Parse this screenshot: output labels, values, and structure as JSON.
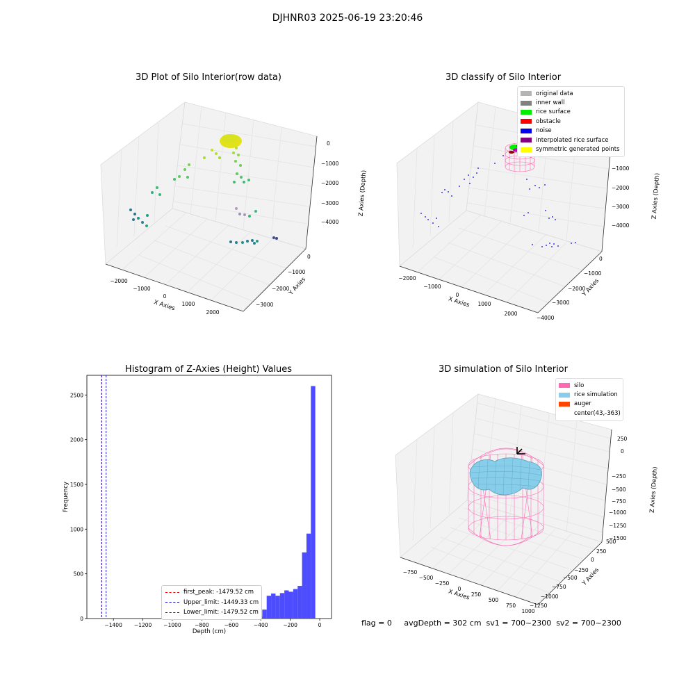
{
  "figure": {
    "suptitle": "DJHNR03 2025-06-19 23:20:46"
  },
  "colors": {
    "hist_bar": "#4d4dff",
    "first_peak_line": "#ff0000",
    "limit_lines": "#0000cc",
    "silo_wire": "#ff69b4",
    "rice_sim": "#87ceeb",
    "auger": "#ff4500"
  },
  "panel_raw": {
    "title": "3D Plot of Silo Interior(row data)",
    "xlabel": "X Axies",
    "ylabel": "Y Axies",
    "zlabel": "Z Axies (Depth)",
    "x_ticks": [
      "−2000",
      "−1000",
      "0",
      "1000",
      "2000"
    ],
    "y_ticks": [
      "0",
      "−1000",
      "−2000",
      "−3000"
    ],
    "z_ticks": [
      "0",
      "−1000",
      "−2000",
      "−3000",
      "−4000"
    ]
  },
  "panel_classify": {
    "title": "3D classify of Silo Interior",
    "xlabel": "X Axies",
    "ylabel": "Y Axies",
    "zlabel": "Z Axies (Depth)",
    "x_ticks": [
      "−2000",
      "−1000",
      "0",
      "1000",
      "2000"
    ],
    "y_ticks": [
      "0",
      "−1000",
      "−2000",
      "−3000",
      "−4000"
    ],
    "z_ticks": [
      "−1000",
      "−2000",
      "−3000",
      "−4000"
    ],
    "legend": [
      {
        "label": "original data",
        "color": "#b4b4b4"
      },
      {
        "label": "inner wall",
        "color": "#808080"
      },
      {
        "label": "rice surface",
        "color": "#00ee00"
      },
      {
        "label": "obstacle",
        "color": "#ff0000"
      },
      {
        "label": "noise",
        "color": "#0000ee"
      },
      {
        "label": "interpolated rice surface",
        "color": "#800080"
      },
      {
        "label": "symmetric generated points",
        "color": "#ffff00"
      }
    ]
  },
  "histogram": {
    "title": "Histogram of Z-Axies (Height) Values",
    "xlabel": "Depth (cm)",
    "ylabel": "Frequency",
    "legend": [
      {
        "label": "first_peak: -1479.52 cm",
        "color": "#ff0000"
      },
      {
        "label": "Upper_limit: -1449.33 cm",
        "color": "#0000cc"
      },
      {
        "label": "Lower_limit: -1479.52 cm",
        "color": "#0000cc"
      }
    ]
  },
  "panel_sim": {
    "title": "3D simulation of Silo Interior",
    "xlabel": "X Axies",
    "ylabel": "Y Axies",
    "zlabel": "Z Axies (Depth)",
    "x_ticks": [
      "−750",
      "−500",
      "−250",
      "0",
      "250",
      "500",
      "750",
      "1000"
    ],
    "y_ticks": [
      "500",
      "250",
      "0",
      "−250",
      "−500",
      "−750",
      "−1000",
      "−1250"
    ],
    "z_ticks": [
      "250",
      "0",
      "−250",
      "−500",
      "−750",
      "−1000",
      "−1250",
      "−1500"
    ],
    "legend": [
      {
        "label": "silo",
        "color": "#ff69b4"
      },
      {
        "label": "rice simulation",
        "color": "#87ceeb"
      },
      {
        "label": "auger",
        "color": "#ff4500"
      },
      {
        "label": "center(43,-363)",
        "color": ""
      }
    ]
  },
  "footer": {
    "text": "flag = 0     avgDepth = 302 cm  sv1 = 700~2300  sv2 = 700~2300"
  },
  "chart_data": [
    {
      "type": "histogram",
      "title": "Histogram of Z-Axies (Height) Values",
      "xlabel": "Depth (cm)",
      "ylabel": "Frequency",
      "xlim": [
        -1580,
        80
      ],
      "ylim": [
        0,
        2720
      ],
      "x_ticks": [
        -1400,
        -1200,
        -1000,
        -800,
        -600,
        -400,
        -200,
        0
      ],
      "y_ticks": [
        0,
        500,
        1000,
        1500,
        2000,
        2500
      ],
      "bin_width": 30,
      "bins": [
        {
          "x0": -600,
          "count": 3
        },
        {
          "x0": -570,
          "count": 3
        },
        {
          "x0": -540,
          "count": 6
        },
        {
          "x0": -510,
          "count": 8
        },
        {
          "x0": -480,
          "count": 6
        },
        {
          "x0": -450,
          "count": 12
        },
        {
          "x0": -420,
          "count": 25
        },
        {
          "x0": -390,
          "count": 100
        },
        {
          "x0": -360,
          "count": 255
        },
        {
          "x0": -330,
          "count": 280
        },
        {
          "x0": -300,
          "count": 255
        },
        {
          "x0": -270,
          "count": 285
        },
        {
          "x0": -240,
          "count": 315
        },
        {
          "x0": -210,
          "count": 300
        },
        {
          "x0": -180,
          "count": 330
        },
        {
          "x0": -150,
          "count": 365
        },
        {
          "x0": -120,
          "count": 740
        },
        {
          "x0": -90,
          "count": 950
        },
        {
          "x0": -60,
          "count": 2600
        }
      ],
      "vlines": [
        {
          "name": "first_peak: -1479.52 cm",
          "x": -1479.52
        },
        {
          "name": "Upper_limit: -1449.33 cm",
          "x": -1449.33
        },
        {
          "name": "Lower_limit: -1479.52 cm",
          "x": -1479.52
        }
      ]
    }
  ]
}
